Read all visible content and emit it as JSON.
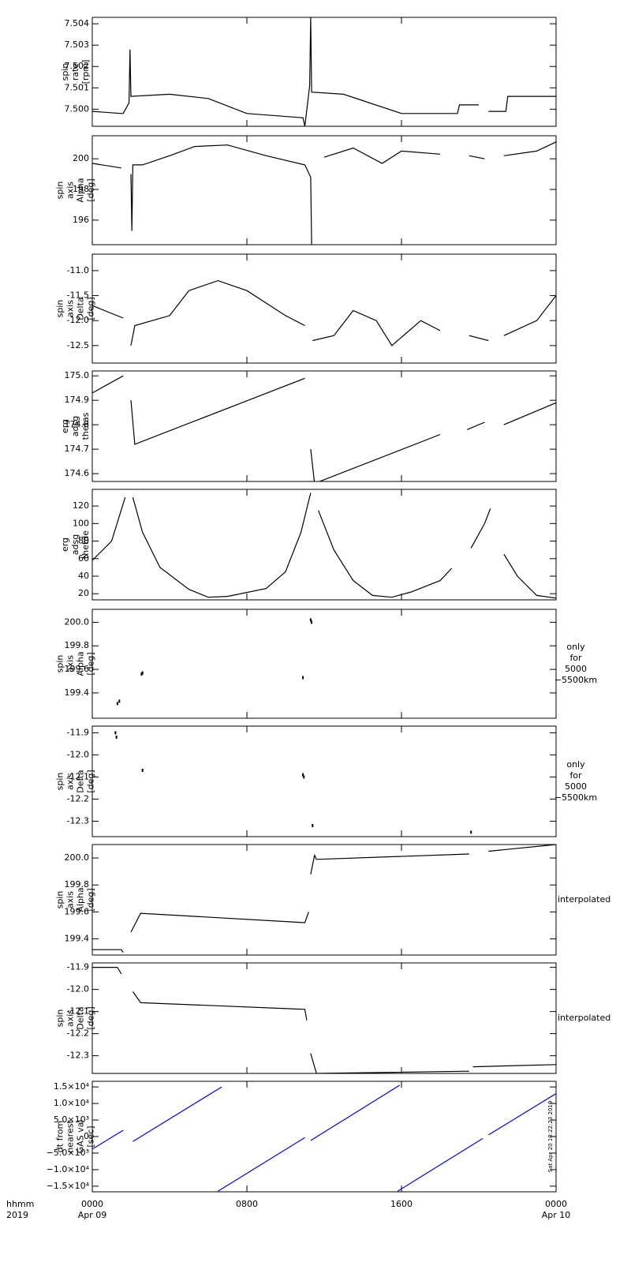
{
  "x_axis": {
    "xlim": [
      0,
      24
    ],
    "xticks": [
      {
        "value": 0,
        "label": "0000"
      },
      {
        "value": 8,
        "label": "0800"
      },
      {
        "value": 16,
        "label": "1600"
      },
      {
        "value": 24,
        "label": "0000"
      }
    ],
    "xtick_dates": [
      "Apr 09",
      null,
      null,
      "Apr 10"
    ],
    "xlabel": [
      "hhmm",
      "2019"
    ]
  },
  "chart_data": [
    {
      "type": "line",
      "ylabel": [
        "spin",
        "rate",
        "[rpm]"
      ],
      "color": "#000000",
      "ylim": [
        7.4992,
        7.5043
      ],
      "yticks": [
        {
          "value": 7.5,
          "label": "7.500"
        },
        7.501,
        7.502,
        7.503,
        7.504
      ],
      "x": [
        0,
        1.5,
        1.6,
        1.9,
        1.95,
        2.0,
        4,
        6,
        8,
        10.9,
        11.0,
        11.25,
        11.3,
        11.35,
        13,
        14,
        16,
        18.9,
        19,
        20,
        20.2,
        20.5,
        21.4,
        21.5,
        24
      ],
      "values": [
        7.4999,
        7.4998,
        7.4998,
        7.5003,
        7.5028,
        7.5006,
        7.5007,
        7.5005,
        7.4998,
        7.4996,
        7.4992,
        7.5011,
        7.5043,
        7.5008,
        7.5007,
        7.5004,
        7.4998,
        7.4998,
        7.5002,
        7.5002,
        null,
        7.4999,
        7.4999,
        7.5006,
        7.5006
      ]
    },
    {
      "type": "line",
      "ylabel": [
        "spin",
        "axis",
        "Alpha",
        "[deg]"
      ],
      "color": "#000000",
      "ylim": [
        194.4,
        201.5
      ],
      "yticks": [
        196,
        198,
        200
      ],
      "x": [
        0,
        1.5,
        1.7,
        2.0,
        2.05,
        2.1,
        2.6,
        4,
        5.3,
        7,
        9,
        11,
        11.3,
        11.35,
        11.5,
        12,
        13.5,
        15,
        16,
        18,
        18.5,
        19.5,
        20.3,
        20.8,
        21.3,
        23,
        24
      ],
      "values": [
        199.7,
        199.4,
        null,
        199.0,
        195.3,
        199.6,
        199.6,
        200.2,
        200.8,
        200.9,
        200.2,
        199.6,
        198.8,
        194.4,
        null,
        200.1,
        200.7,
        199.7,
        200.5,
        200.3,
        null,
        200.2,
        200.0,
        null,
        200.2,
        200.5,
        201.1
      ]
    },
    {
      "type": "line",
      "ylabel": [
        "spin",
        "axis",
        "Delta",
        "[deg]"
      ],
      "color": "#000000",
      "ylim": [
        -12.85,
        -10.67
      ],
      "yticks": [
        -12.5,
        {
          "value": -12,
          "label": "-12.0"
        },
        -11.5,
        {
          "value": -11,
          "label": "-11.0"
        }
      ],
      "x": [
        0,
        1.6,
        1.8,
        2.0,
        2.2,
        4,
        5,
        6.5,
        8,
        10,
        11,
        11.2,
        11.4,
        12.5,
        13.5,
        14.7,
        15.5,
        17,
        18,
        18.8,
        19.5,
        20.5,
        20.9,
        21.3,
        23,
        24
      ],
      "values": [
        -11.7,
        -11.95,
        null,
        -12.5,
        -12.1,
        -11.9,
        -11.4,
        -11.2,
        -11.4,
        -11.9,
        -12.1,
        null,
        -12.4,
        -12.3,
        -11.8,
        -12.0,
        -12.5,
        -12.0,
        -12.2,
        null,
        -12.3,
        -12.4,
        null,
        -12.3,
        -12.0,
        -11.5
      ]
    },
    {
      "type": "line",
      "ylabel": [
        "erg",
        "adsg",
        "thetas"
      ],
      "color": "#000000",
      "ylim": [
        174.568,
        175.02
      ],
      "yticks": [
        174.6,
        174.7,
        174.8,
        174.9,
        {
          "value": 175,
          "label": "175.0"
        }
      ],
      "x": [
        0,
        1.6,
        1.8,
        2.0,
        2.2,
        11,
        11.2,
        11.3,
        11.5,
        18,
        18.8,
        19.4,
        20.3,
        20.8,
        21.3,
        24
      ],
      "values": [
        174.93,
        175.0,
        null,
        174.9,
        174.72,
        174.99,
        null,
        174.7,
        174.56,
        174.76,
        null,
        174.78,
        174.81,
        null,
        174.8,
        174.89
      ]
    },
    {
      "type": "line",
      "ylabel": [
        "erg",
        "adsg",
        "thetde"
      ],
      "color": "#000000",
      "ylim": [
        13,
        139
      ],
      "yticks": [
        20,
        40,
        60,
        80,
        100,
        120
      ],
      "x": [
        0,
        1,
        1.7,
        1.9,
        2.1,
        2.6,
        3.5,
        5,
        6,
        7,
        9,
        10,
        10.8,
        11.3,
        11.5,
        11.7,
        12.5,
        13.5,
        14.5,
        15.5,
        16.5,
        18,
        18.6,
        19,
        19.6,
        20.3,
        20.6,
        21,
        21.3,
        22,
        23,
        24
      ],
      "values": [
        58,
        80,
        130,
        null,
        130,
        90,
        50,
        25,
        16,
        17,
        26,
        45,
        90,
        135,
        null,
        115,
        70,
        35,
        18,
        16,
        22,
        35,
        49,
        null,
        72,
        100,
        117,
        null,
        65,
        40,
        18,
        15
      ]
    },
    {
      "type": "scatter",
      "ylabel": [
        "spin",
        "axis",
        "Alpha",
        "[deg]"
      ],
      "color": "#000000",
      "annotation": [
        "only",
        "for",
        "5000",
        "−5500km"
      ],
      "ylim": [
        199.185,
        200.11
      ],
      "yticks": [
        199.4,
        199.6,
        199.8,
        {
          "value": 200,
          "label": "200.0"
        }
      ],
      "x": [
        1.3,
        1.4,
        2.55,
        2.6,
        10.9,
        11.3,
        11.35
      ],
      "values": [
        199.31,
        199.33,
        199.56,
        199.57,
        199.53,
        200.02,
        200.0
      ]
    },
    {
      "type": "scatter",
      "ylabel": [
        "spin",
        "axis",
        "Delta",
        "[deg]"
      ],
      "color": "#000000",
      "annotation": [
        "only",
        "for",
        "5000",
        "−5500km"
      ],
      "ylim": [
        -12.37,
        -11.87
      ],
      "yticks": [
        -12.3,
        -12.2,
        -12.1,
        {
          "value": -12,
          "label": "-12.0"
        },
        -11.9
      ],
      "x": [
        1.2,
        1.25,
        2.6,
        10.9,
        10.95,
        11.4,
        19.6
      ],
      "values": [
        -11.9,
        -11.92,
        -12.07,
        -12.09,
        -12.1,
        -12.32,
        -12.35
      ]
    },
    {
      "type": "line",
      "ylabel": [
        "spin",
        "axis",
        "Alpha",
        "[deg]"
      ],
      "color": "#000000",
      "annotation": [
        "interpolated"
      ],
      "ylim": [
        199.28,
        200.1
      ],
      "yticks": [
        199.4,
        199.6,
        199.8,
        {
          "value": 200,
          "label": "200.0"
        }
      ],
      "x": [
        0,
        1.5,
        1.6,
        1.8,
        2.0,
        2.5,
        11,
        11.2,
        11.25,
        11.3,
        11.5,
        11.6,
        19.5,
        20,
        20.5,
        24
      ],
      "values": [
        199.32,
        199.32,
        199.3,
        null,
        199.45,
        199.59,
        199.52,
        199.6,
        null,
        199.88,
        200.02,
        199.99,
        200.03,
        null,
        200.05,
        200.1
      ]
    },
    {
      "type": "line",
      "ylabel": [
        "spin",
        "axis",
        "Delta",
        "[deg]"
      ],
      "color": "#000000",
      "annotation": [
        "interpolated"
      ],
      "ylim": [
        -12.38,
        -11.88
      ],
      "yticks": [
        -12.3,
        -12.2,
        -12.1,
        {
          "value": -12,
          "label": "-12.0"
        },
        -11.9
      ],
      "x": [
        0,
        1.3,
        1.5,
        1.8,
        2.1,
        2.5,
        11,
        11.1,
        11.2,
        11.3,
        11.6,
        19.5,
        19.6,
        19.7,
        24
      ],
      "values": [
        -11.9,
        -11.9,
        -11.93,
        null,
        -12.01,
        -12.06,
        -12.09,
        -12.14,
        null,
        -12.29,
        -12.38,
        -12.37,
        null,
        -12.35,
        -12.34
      ]
    },
    {
      "type": "line",
      "ylabel": [
        "dt from",
        "nearest",
        "GAS val",
        "[sec]"
      ],
      "annotation": [
        "Sat Apr 20 10:22:23 2019"
      ],
      "ylim": [
        -16700,
        16700
      ],
      "yticks": [
        {
          "value": -15000,
          "label": "−1.5×10⁴"
        },
        {
          "value": -10000,
          "label": "−1.0×10⁴"
        },
        {
          "value": -5000,
          "label": "−5.0×10³"
        },
        0,
        {
          "value": 5000,
          "label": "5.0×10³"
        },
        {
          "value": 10000,
          "label": "1.0×10⁴"
        },
        {
          "value": 15000,
          "label": "1.5×10⁴"
        }
      ],
      "series": [
        {
          "color": "#0000ff",
          "x": [
            0,
            1.6,
            1.8,
            2.1,
            6.7,
            6.8,
            11.3,
            15.9
          ],
          "values": [
            -3800,
            1900,
            null,
            -1500,
            15000,
            null,
            -1200,
            15500
          ]
        },
        {
          "color": "#0000ff",
          "x": [
            6.5,
            11.0,
            11.1,
            15.8,
            20.2,
            20.3,
            20.5,
            24
          ],
          "values": [
            -16500,
            -300,
            null,
            -16500,
            -600,
            null,
            500,
            13000
          ]
        }
      ]
    }
  ]
}
